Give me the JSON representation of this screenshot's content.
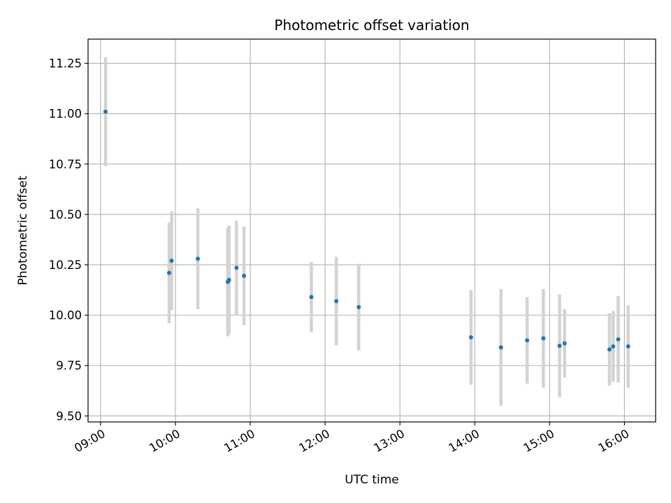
{
  "chart_data": {
    "type": "scatter",
    "title": "Photometric offset variation",
    "xlabel": "UTC time",
    "ylabel": "Photometric offset",
    "x_axis": "time",
    "xlim": [
      "08:50",
      "16:25"
    ],
    "ylim": [
      9.47,
      11.37
    ],
    "x_ticks": [
      "09:00",
      "10:00",
      "11:00",
      "12:00",
      "13:00",
      "14:00",
      "15:00",
      "16:00"
    ],
    "y_ticks": [
      "9.50",
      "9.75",
      "10.00",
      "10.25",
      "10.50",
      "10.75",
      "11.00",
      "11.25"
    ],
    "grid": true,
    "marker_color": "#1f77b4",
    "errorbar_color": "#d3d3d3",
    "series": [
      {
        "points": [
          {
            "x": "09:04",
            "y": 11.01,
            "err": 0.27
          },
          {
            "x": "09:55",
            "y": 10.21,
            "err": 0.25
          },
          {
            "x": "09:57",
            "y": 10.27,
            "err": 0.245
          },
          {
            "x": "10:18",
            "y": 10.28,
            "err": 0.25
          },
          {
            "x": "10:42",
            "y": 10.165,
            "err": 0.27
          },
          {
            "x": "10:43",
            "y": 10.175,
            "err": 0.27
          },
          {
            "x": "10:49",
            "y": 10.235,
            "err": 0.235
          },
          {
            "x": "10:55",
            "y": 10.195,
            "err": 0.245
          },
          {
            "x": "11:49",
            "y": 10.09,
            "err": 0.175
          },
          {
            "x": "12:09",
            "y": 10.07,
            "err": 0.22
          },
          {
            "x": "12:27",
            "y": 10.04,
            "err": 0.215
          },
          {
            "x": "13:57",
            "y": 9.89,
            "err": 0.235
          },
          {
            "x": "14:21",
            "y": 9.84,
            "err": 0.29
          },
          {
            "x": "14:42",
            "y": 9.875,
            "err": 0.215
          },
          {
            "x": "14:55",
            "y": 9.885,
            "err": 0.245
          },
          {
            "x": "15:08",
            "y": 9.848,
            "err": 0.255
          },
          {
            "x": "15:12",
            "y": 9.86,
            "err": 0.17
          },
          {
            "x": "15:48",
            "y": 9.83,
            "err": 0.18
          },
          {
            "x": "15:51",
            "y": 9.845,
            "err": 0.175
          },
          {
            "x": "15:55",
            "y": 9.88,
            "err": 0.215
          },
          {
            "x": "16:03",
            "y": 9.845,
            "err": 0.205
          }
        ]
      }
    ]
  }
}
